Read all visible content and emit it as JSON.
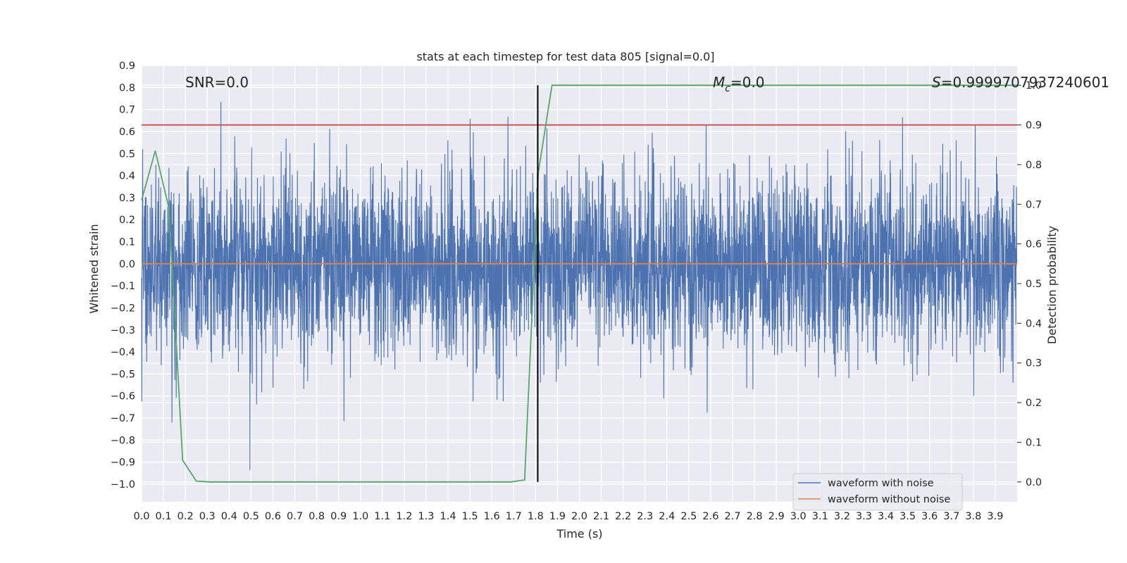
{
  "chart_data": {
    "type": "line",
    "title": "stats at each timestep for test data 805 [signal=0.0]",
    "xlabel": "Time (s)",
    "ylabel": "Whitened strain",
    "ylabel_right": "Detection probability",
    "xlim": [
      0.0,
      4.0
    ],
    "ylim": [
      -1.08,
      0.9
    ],
    "ylim_right": [
      -0.05,
      1.05
    ],
    "x_ticks": [
      "0.0",
      "0.1",
      "0.2",
      "0.3",
      "0.4",
      "0.5",
      "0.6",
      "0.7",
      "0.8",
      "0.9",
      "1.0",
      "1.1",
      "1.2",
      "1.3",
      "1.4",
      "1.5",
      "1.6",
      "1.7",
      "1.8",
      "1.9",
      "2.0",
      "2.1",
      "2.2",
      "2.3",
      "2.4",
      "2.5",
      "2.6",
      "2.7",
      "2.8",
      "2.9",
      "3.0",
      "3.1",
      "3.2",
      "3.3",
      "3.4",
      "3.5",
      "3.6",
      "3.7",
      "3.8",
      "3.9"
    ],
    "y_ticks": [
      "0.9",
      "0.8",
      "0.7",
      "0.6",
      "0.5",
      "0.4",
      "0.3",
      "0.2",
      "0.1",
      "0.0",
      "−0.1",
      "−0.2",
      "−0.3",
      "−0.4",
      "−0.5",
      "−0.6",
      "−0.7",
      "−0.8",
      "−0.9",
      "−1.0"
    ],
    "y_ticks_right": [
      "1.0",
      "0.9",
      "0.8",
      "0.7",
      "0.6",
      "0.5",
      "0.4",
      "0.3",
      "0.2",
      "0.1",
      "0.0"
    ],
    "grid": true,
    "legend_position": "lower-right",
    "annotations": {
      "snr": "SNR=0.0",
      "mc_symbol": "M",
      "mc_sub": "c",
      "mc_value": "=0.0",
      "s_symbol": "S",
      "s_value": "=0.9999707937240601"
    },
    "vertical_line_x": 1.81,
    "threshold_right": 0.9,
    "series": [
      {
        "name": "waveform with noise",
        "color": "#4c72b0",
        "kind": "noise",
        "sigma": 0.21,
        "n_points": 4096,
        "seed": 805
      },
      {
        "name": "waveform without noise",
        "color": "#dd8452",
        "x": [
          0.0,
          4.0
        ],
        "y": [
          0.0,
          0.0
        ]
      },
      {
        "name": "",
        "color": "#55a868",
        "axis": "right",
        "x": [
          0.0,
          0.0625,
          0.125,
          0.1875,
          0.25,
          0.3125,
          1.6875,
          1.75,
          1.8125,
          1.875,
          4.0
        ],
        "y": [
          0.71,
          0.835,
          0.69,
          0.055,
          0.002,
          0.0,
          0.0,
          0.005,
          0.78,
          1.0,
          1.0
        ]
      },
      {
        "name": "",
        "color": "#c44e52",
        "axis": "right",
        "x": [
          0.0,
          4.0
        ],
        "y": [
          0.9,
          0.9
        ]
      }
    ]
  }
}
